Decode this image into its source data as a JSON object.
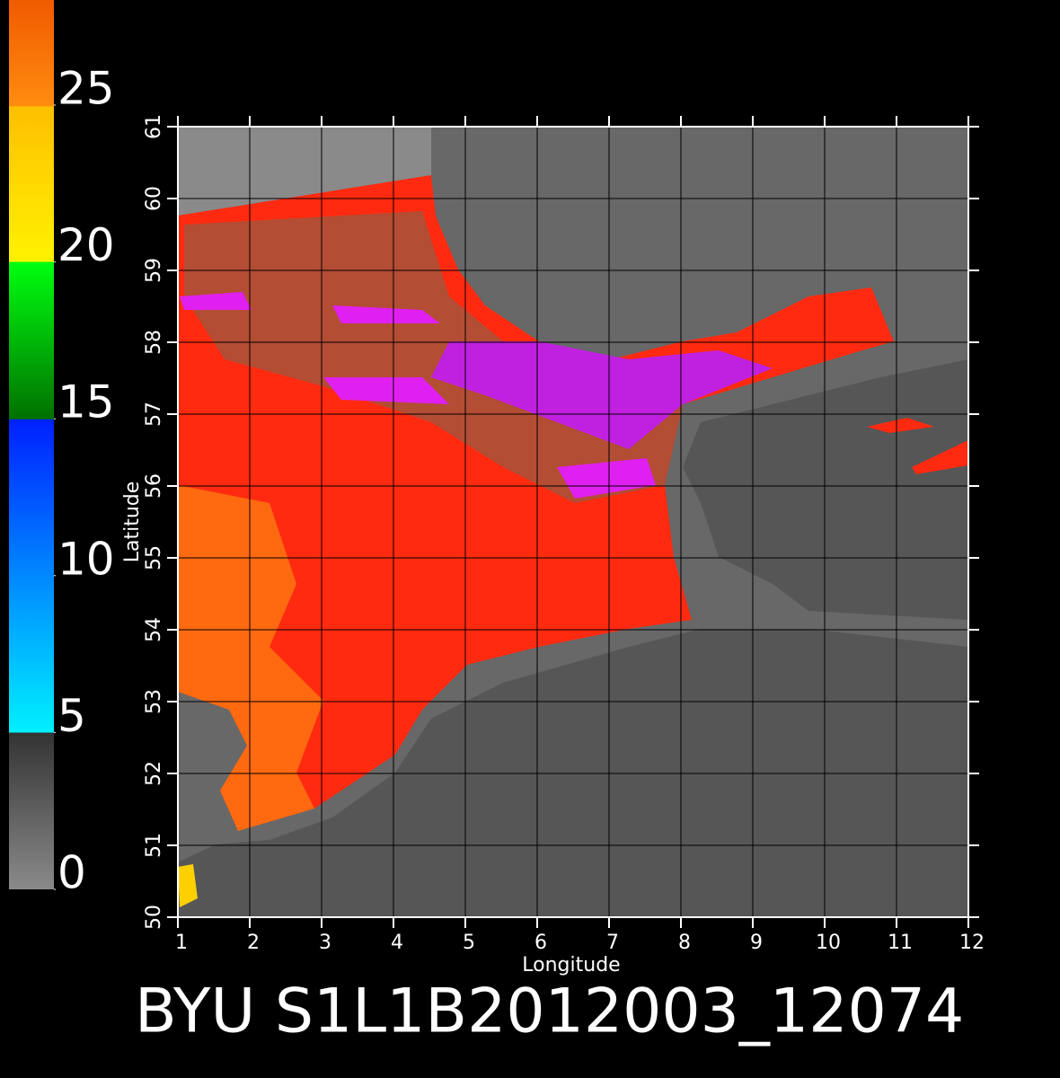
{
  "chart_data": {
    "type": "map",
    "title": "BYU  S1L1B2012003_12074",
    "x_label": "Longitude",
    "y_label": "Latitude",
    "xlim": [
      1,
      12
    ],
    "ylim": [
      50,
      61
    ],
    "xticks": [
      1,
      2,
      3,
      4,
      5,
      6,
      7,
      8,
      9,
      10,
      11,
      12
    ],
    "yticks": [
      50,
      51,
      52,
      53,
      54,
      55,
      56,
      57,
      58,
      59,
      60,
      61
    ],
    "colorbar_lim": [
      0,
      28.35
    ],
    "colorbar_ticks": [
      0,
      5,
      10,
      15,
      20,
      25
    ],
    "grid": true
  }
}
